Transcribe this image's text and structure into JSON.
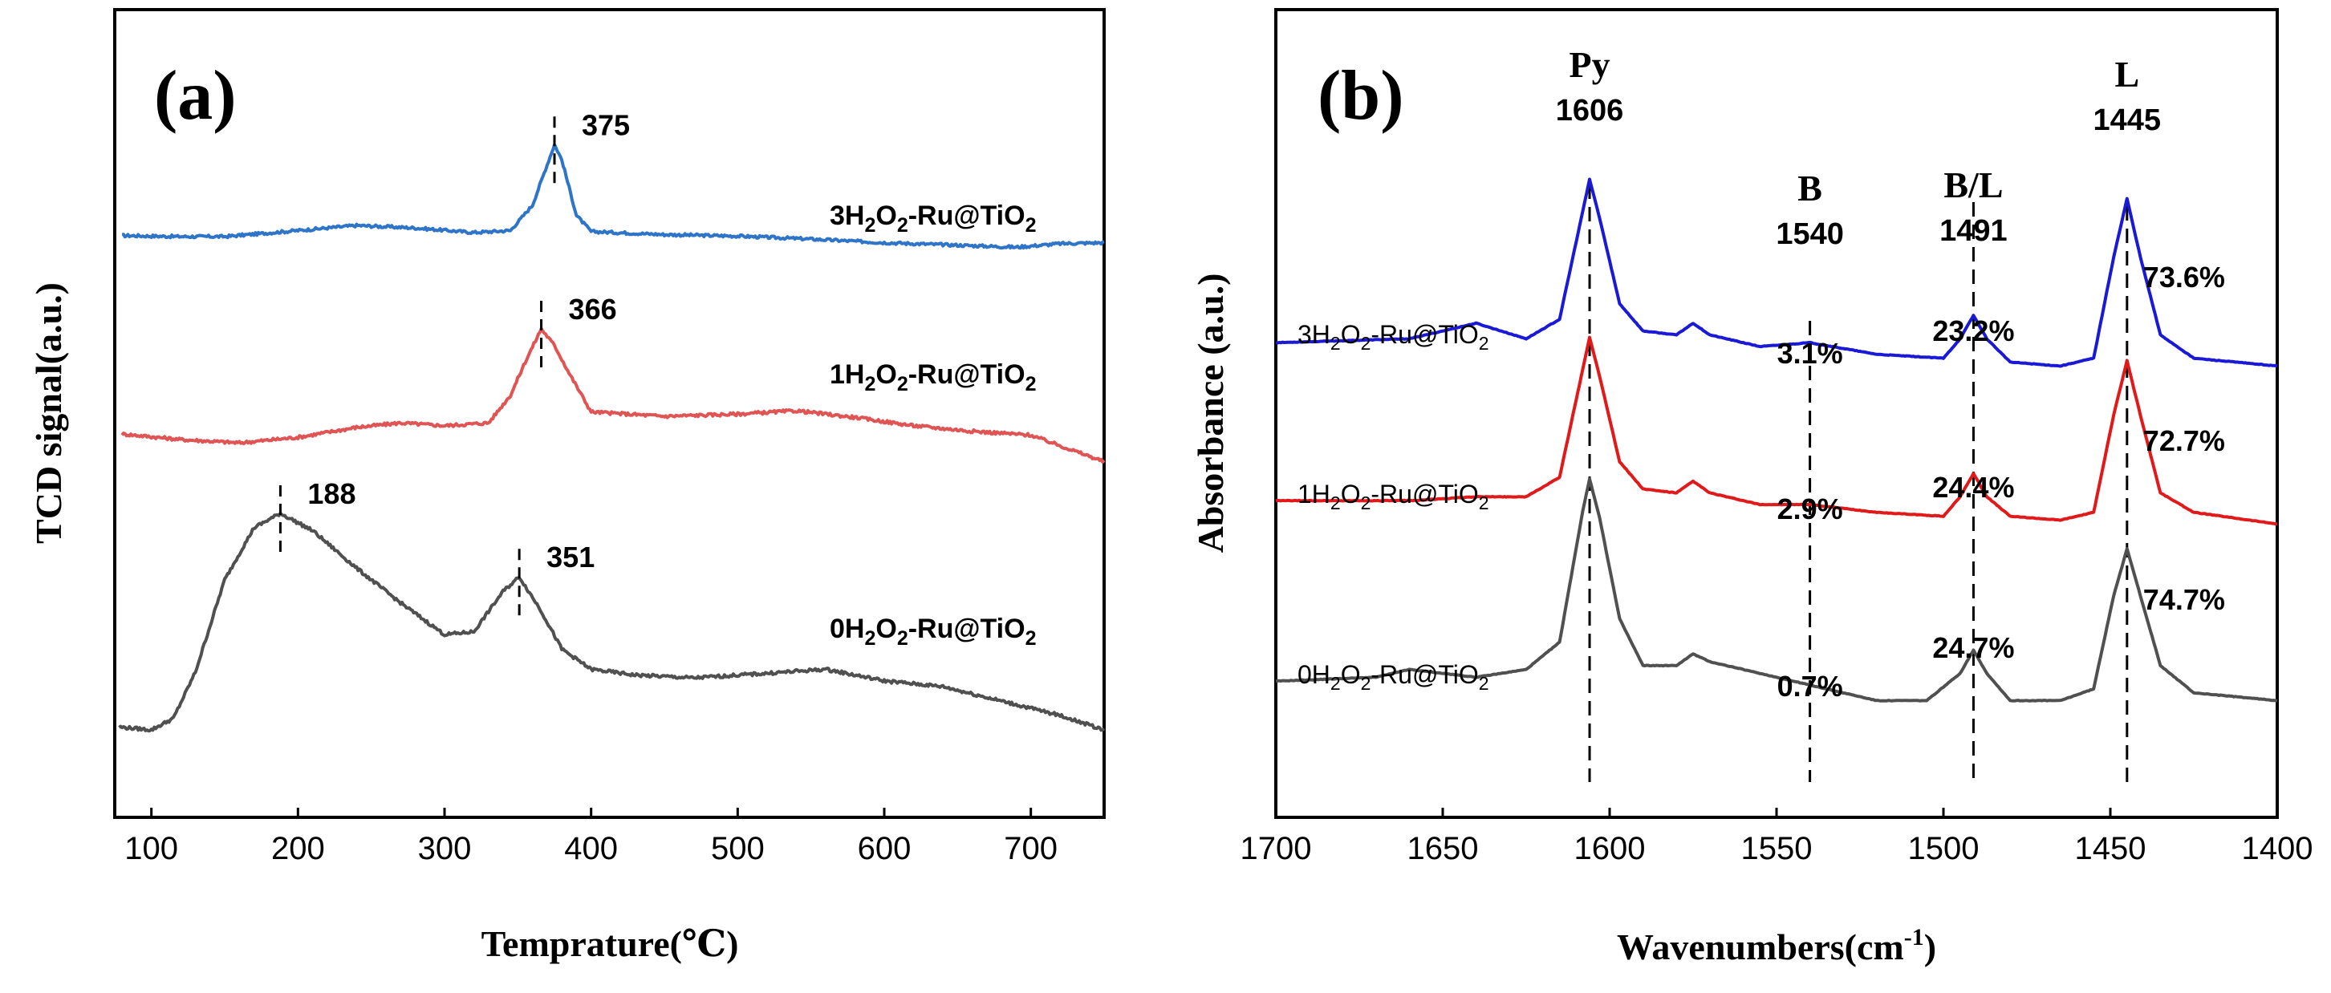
{
  "chart_data": [
    {
      "type": "line",
      "panel": "(a)",
      "xlabel": "Temprature(℃)",
      "ylabel": "TCD signal(a.u.)",
      "xlim": [
        75,
        750
      ],
      "xticks": [
        "100",
        "200",
        "300",
        "400",
        "500",
        "600",
        "700"
      ],
      "series": [
        {
          "name": "3H2O2-Ru@TiO2",
          "label_base": "3H",
          "label_rest": "-Ru@TiO",
          "sub": "2",
          "color": "#2e75c9",
          "x": [
            80,
            120,
            150,
            200,
            240,
            280,
            320,
            345,
            360,
            370,
            375,
            380,
            390,
            400,
            450,
            500,
            550,
            600,
            650,
            690,
            720,
            750
          ],
          "y": [
            1.0,
            0.8,
            0.8,
            2.0,
            3.0,
            2.5,
            1.6,
            2.0,
            7.0,
            15.0,
            19.0,
            16.0,
            5.0,
            1.8,
            1.2,
            0.9,
            0.3,
            -0.4,
            -0.9,
            -1.3,
            -0.6,
            -0.4
          ]
        },
        {
          "name": "1H2O2-Ru@TiO2",
          "label_base": "1H",
          "label_rest": "-Ru@TiO",
          "sub": "2",
          "color": "#e05454",
          "x": [
            80,
            120,
            160,
            200,
            240,
            270,
            300,
            330,
            345,
            355,
            366,
            375,
            385,
            400,
            450,
            500,
            540,
            580,
            620,
            660,
            700,
            750
          ],
          "y": [
            1.0,
            0.0,
            -0.6,
            0.4,
            2.2,
            3.0,
            2.5,
            3.0,
            8.0,
            14.0,
            20.0,
            17.0,
            12.0,
            5.0,
            4.2,
            4.6,
            5.2,
            4.0,
            2.5,
            1.5,
            0.8,
            -4.0
          ]
        },
        {
          "name": "0H2O2-Ru@TiO2",
          "label_base": "0H",
          "label_rest": "-Ru@TiO",
          "sub": "2",
          "color": "#505050",
          "x": [
            78,
            100,
            115,
            130,
            150,
            170,
            188,
            210,
            240,
            270,
            300,
            320,
            340,
            351,
            365,
            380,
            400,
            430,
            470,
            520,
            560,
            600,
            640,
            680,
            720,
            750
          ],
          "y": [
            0.5,
            0.0,
            2.0,
            10.0,
            26.0,
            35.0,
            37.5,
            34.5,
            28.0,
            22.0,
            16.5,
            17.0,
            24.0,
            26.5,
            21.0,
            14.0,
            10.5,
            9.5,
            9.0,
            9.8,
            10.5,
            8.5,
            7.5,
            5.0,
            2.5,
            0.0
          ]
        }
      ],
      "annotations": [
        {
          "label": "375",
          "x": 375,
          "series": 0
        },
        {
          "label": "366",
          "x": 366,
          "series": 1
        },
        {
          "label": "188",
          "x": 188,
          "series": 2
        },
        {
          "label": "351",
          "x": 351,
          "series": 2
        }
      ]
    },
    {
      "type": "line",
      "panel": "(b)",
      "xlabel_main": "Wavenumbers(cm",
      "xlabel_sup": "-1",
      "xlabel_end": ")",
      "ylabel": "Absorbance (a.u.)",
      "xlim": [
        1700,
        1400
      ],
      "xticks": [
        "1700",
        "1650",
        "1600",
        "1550",
        "1500",
        "1450",
        "1400"
      ],
      "series": [
        {
          "name": "3H2O2-Ru@TiO2",
          "label_base": "3H",
          "label_rest": "-Ru@TiO",
          "sub": "2",
          "color": "#1a1ad6",
          "x": [
            1700,
            1660,
            1640,
            1625,
            1615,
            1608,
            1606,
            1603,
            1597,
            1590,
            1580,
            1575,
            1570,
            1555,
            1540,
            1520,
            1500,
            1495,
            1491,
            1487,
            1480,
            1465,
            1455,
            1449,
            1445,
            1441,
            1435,
            1425,
            1400
          ],
          "y": [
            8,
            9,
            13,
            9,
            14,
            42,
            50,
            40,
            18,
            11,
            10,
            13,
            10,
            7,
            8,
            5,
            4,
            9,
            15,
            9,
            3,
            2,
            4,
            30,
            45,
            30,
            10,
            4,
            2
          ]
        },
        {
          "name": "1H2O2-Ru@TiO2",
          "label_base": "1H",
          "label_rest": "-Ru@TiO",
          "sub": "2",
          "color": "#e01a1a",
          "x": [
            1700,
            1660,
            1640,
            1625,
            1615,
            1608,
            1606,
            1603,
            1597,
            1590,
            1580,
            1575,
            1570,
            1555,
            1540,
            1520,
            1500,
            1495,
            1491,
            1487,
            1480,
            1465,
            1455,
            1449,
            1445,
            1441,
            1435,
            1425,
            1400
          ],
          "y": [
            8,
            8,
            9,
            9,
            14,
            42,
            50,
            40,
            18,
            11,
            10,
            13,
            10,
            7,
            7,
            5,
            4,
            9,
            15,
            9,
            4,
            3,
            5,
            30,
            44,
            30,
            10,
            5,
            2
          ]
        },
        {
          "name": "0H2O2-Ru@TiO2",
          "label_base": "0H",
          "label_rest": "-Ru@TiO",
          "sub": "2",
          "color": "#505050",
          "x": [
            1700,
            1670,
            1660,
            1640,
            1625,
            1615,
            1608,
            1606,
            1603,
            1597,
            1590,
            1580,
            1575,
            1570,
            1555,
            1540,
            1520,
            1505,
            1495,
            1491,
            1487,
            1480,
            1465,
            1455,
            1449,
            1445,
            1441,
            1435,
            1425,
            1400
          ],
          "y": [
            8,
            9,
            11,
            9,
            11,
            18,
            52,
            60,
            50,
            24,
            12,
            12,
            15,
            13,
            10,
            7,
            3,
            3,
            10,
            16,
            10,
            3,
            3,
            6,
            30,
            42,
            30,
            12,
            5,
            3
          ]
        }
      ],
      "peak_labels": [
        {
          "top": "Py",
          "wn": "1606",
          "x": 1606
        },
        {
          "top": "B",
          "wn": "1540",
          "x": 1540
        },
        {
          "top": "B/L",
          "wn": "1491",
          "x": 1491
        },
        {
          "top": "L",
          "wn": "1445",
          "x": 1445
        }
      ],
      "percentages": [
        {
          "series": 0,
          "B": "3.1%",
          "BL": "23.2%",
          "L": "73.6%"
        },
        {
          "series": 1,
          "B": "2.9%",
          "BL": "24.4%",
          "L": "72.7%"
        },
        {
          "series": 2,
          "B": "0.7%",
          "BL": "24.7%",
          "L": "74.7%"
        }
      ]
    }
  ]
}
